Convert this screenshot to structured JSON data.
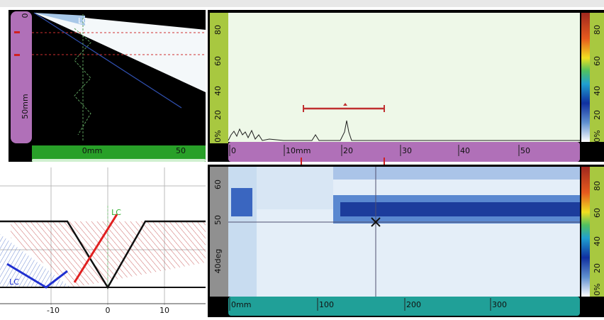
{
  "sscan": {
    "ruler_left": [
      "0",
      "50mm"
    ],
    "ruler_bottom": [
      "0mm",
      "50"
    ],
    "label": "LC"
  },
  "ascan": {
    "ruler_left": [
      "80",
      "60",
      "40",
      "20",
      "0%"
    ],
    "colorbar": [
      "80",
      "60",
      "40",
      "20",
      "0%"
    ],
    "ruler_bottom": [
      "0",
      "10mm",
      "20",
      "30",
      "40",
      "50"
    ]
  },
  "weld": {
    "axis": [
      "-10",
      "0",
      "10"
    ],
    "labels": [
      "LC",
      "LC"
    ]
  },
  "cscan": {
    "ruler_left": [
      "60",
      "50",
      "40deg"
    ],
    "colorbar": [
      "80",
      "60",
      "40",
      "20",
      "0%"
    ],
    "ruler_bottom": [
      "0mm",
      "100",
      "200",
      "300"
    ]
  }
}
